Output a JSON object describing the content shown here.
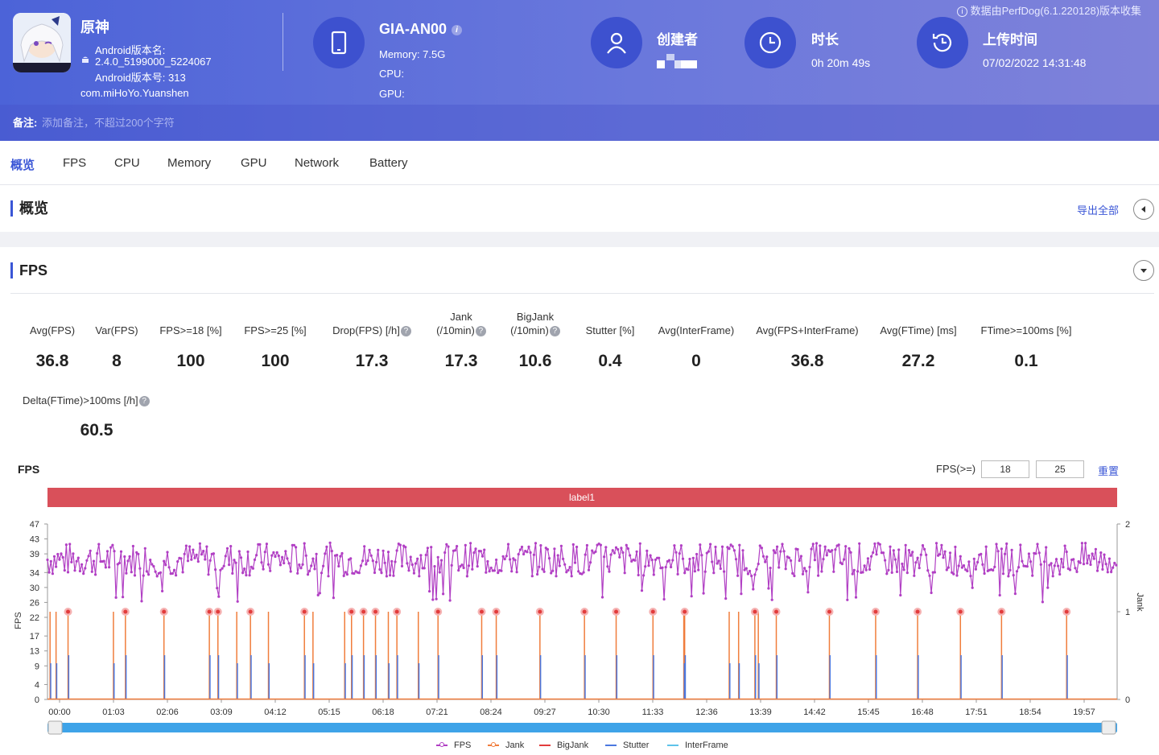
{
  "header": {
    "app_name": "原神",
    "android_version_name_label": "Android版本名:",
    "android_version_name": "2.4.0_5199000_5224067",
    "android_version_code": "Android版本号: 313",
    "package": "com.miHoYo.Yuanshen",
    "device_name": "GIA-AN00",
    "memory": "Memory: 7.5G",
    "cpu": "CPU:",
    "gpu": "GPU:",
    "creator_label": "创建者",
    "duration_label": "时长",
    "duration_value": "0h 20m 49s",
    "upload_label": "上传时间",
    "upload_value": "07/02/2022 14:31:48",
    "source_note": "数据由PerfDog(6.1.220128)版本收集",
    "note_label": "备注:",
    "note_placeholder": "添加备注，不超过200个字符"
  },
  "tabs": [
    "概览",
    "FPS",
    "CPU",
    "Memory",
    "GPU",
    "Network",
    "Battery"
  ],
  "overview": {
    "title": "概览",
    "export": "导出全部"
  },
  "fps_section": {
    "title": "FPS",
    "metrics": [
      {
        "label": "Avg(FPS)",
        "value": "36.8"
      },
      {
        "label": "Var(FPS)",
        "value": "8"
      },
      {
        "label": "FPS>=18 [%]",
        "value": "100"
      },
      {
        "label": "FPS>=25 [%]",
        "value": "100"
      },
      {
        "label": "Drop(FPS) [/h]",
        "value": "17.3"
      },
      {
        "label": "Jank",
        "label2": "(/10min)",
        "value": "17.3"
      },
      {
        "label": "BigJank",
        "label2": "(/10min)",
        "value": "10.6"
      },
      {
        "label": "Stutter [%]",
        "value": "0.4"
      },
      {
        "label": "Avg(InterFrame)",
        "value": "0"
      },
      {
        "label": "Avg(FPS+InterFrame)",
        "value": "36.8"
      },
      {
        "label": "Avg(FTime) [ms]",
        "value": "27.2"
      },
      {
        "label": "FTime>=100ms [%]",
        "value": "0.1"
      },
      {
        "label": "Delta(FTime)>100ms [/h]",
        "value": "60.5"
      }
    ],
    "chart_title": "FPS",
    "threshold_label": "FPS(>=)",
    "threshold_1": "18",
    "threshold_2": "25",
    "reset": "重置",
    "band_label": "label1"
  },
  "chart_data": {
    "type": "line",
    "left_axis": {
      "label": "FPS",
      "ticks": [
        0,
        4,
        9,
        13,
        17,
        22,
        26,
        30,
        34,
        39,
        43,
        47
      ],
      "range": [
        0,
        47
      ]
    },
    "right_axis": {
      "label": "Jank",
      "ticks": [
        0,
        1,
        2
      ],
      "range": [
        0,
        2
      ]
    },
    "x_ticks": [
      "00:00",
      "01:03",
      "02:06",
      "03:09",
      "04:12",
      "05:15",
      "06:18",
      "07:21",
      "08:24",
      "09:27",
      "10:30",
      "11:33",
      "12:36",
      "13:39",
      "14:42",
      "15:45",
      "16:48",
      "17:51",
      "18:54",
      "19:57"
    ],
    "x_range_seconds": [
      0,
      1249
    ],
    "fps_typical_range": [
      33,
      42
    ],
    "fps_min": 26,
    "fps_max": 43,
    "bigjank_times_seconds": [
      24,
      91,
      136,
      189,
      199,
      237,
      300,
      355,
      369,
      383,
      408,
      456,
      507,
      524,
      575,
      627,
      664,
      707,
      744,
      826,
      851,
      913,
      967,
      1016,
      1066,
      1114,
      1190
    ],
    "jank_only_times_seconds": [
      3,
      10,
      77,
      221,
      258,
      310,
      347,
      398,
      433,
      743,
      796,
      807,
      830
    ],
    "series": [
      {
        "name": "FPS",
        "color": "#b13fc4"
      },
      {
        "name": "Jank",
        "color": "#f07d3c"
      },
      {
        "name": "BigJank",
        "color": "#e23c3c"
      },
      {
        "name": "Stutter",
        "color": "#4b78e0"
      },
      {
        "name": "InterFrame",
        "color": "#5ec3ea"
      }
    ]
  }
}
